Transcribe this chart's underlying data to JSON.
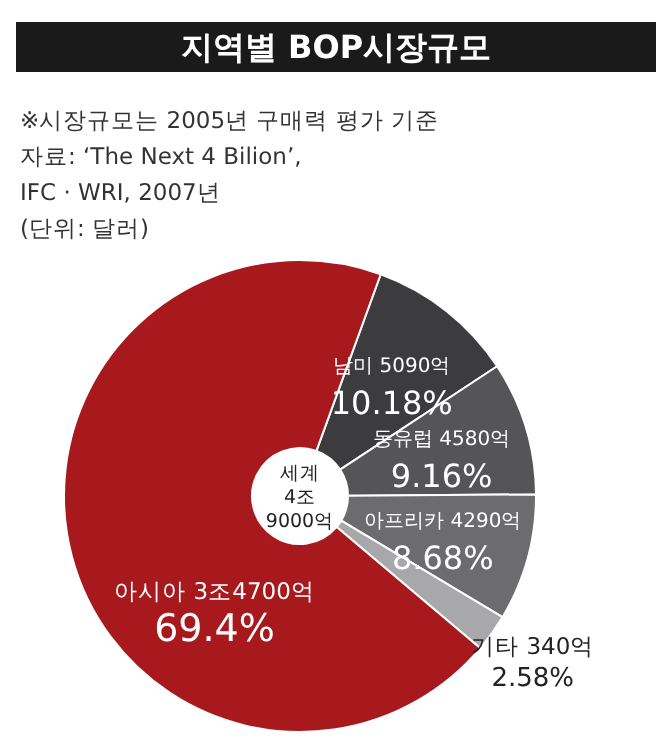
{
  "chart_data": {
    "type": "donut",
    "title": "지역별 BOP시장규모",
    "categories": [
      "남미 5090억",
      "동유럽 4580억",
      "아프리카 4290억",
      "기타 340억",
      "아시아 3조4700억"
    ],
    "values": [
      10.18,
      9.16,
      8.68,
      2.58,
      69.4
    ],
    "value_labels": [
      "10.18%",
      "9.16%",
      "8.68%",
      "2.58%",
      "69.4%"
    ],
    "colors": [
      "#3c3c3e",
      "#555557",
      "#6c6c6e",
      "#a8a8aa",
      "#a8191e"
    ],
    "annotations": [
      "※시장규모는 2005년 구매력 평가 기준",
      "자료: ‘The Next 4 Bilion’,",
      "IFC · WRI, 2007년",
      "(단위: 달러)",
      "세계 4조 9000억"
    ]
  }
}
